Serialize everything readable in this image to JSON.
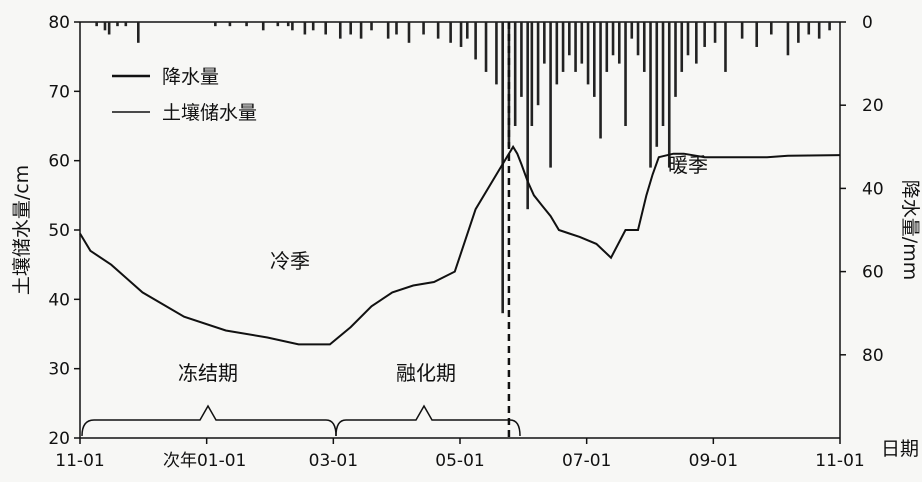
{
  "chart_data": {
    "type": "line",
    "title_fragment": "",
    "ylabel_left": "土壤储水量/cm",
    "ylabel_right": "降水量/mm",
    "xlabel": "日期",
    "ylim_left": [
      20,
      80
    ],
    "ylim_right": [
      0,
      100
    ],
    "left_ticks": [
      "20",
      "30",
      "40",
      "50",
      "60",
      "70",
      "80"
    ],
    "right_ticks": [
      "0",
      "20",
      "40",
      "60",
      "80"
    ],
    "x_ticks": [
      "11-01",
      "次年01-01",
      "03-01",
      "05-01",
      "07-01",
      "09-01",
      "11-01"
    ],
    "legend": [
      {
        "label": "降水量"
      },
      {
        "label": "土壤储水量"
      }
    ],
    "annotations": {
      "cold_season": "冷季",
      "warm_season": "暖季",
      "freeze_period": "冻结期",
      "thaw_period": "融化期"
    },
    "soil_storage": {
      "name": "土壤储水量",
      "unit": "cm",
      "x_days": [
        0,
        5,
        15,
        30,
        50,
        70,
        90,
        105,
        120,
        130,
        140,
        150,
        160,
        170,
        180,
        190,
        200,
        208,
        210,
        212,
        215,
        218,
        222,
        226,
        230,
        235,
        240,
        248,
        255,
        262,
        268,
        272,
        275,
        278,
        285,
        290,
        300,
        310,
        320,
        330,
        340,
        365
      ],
      "values": [
        49.5,
        47,
        45,
        41,
        37.5,
        35.5,
        34.5,
        33.5,
        33.5,
        36,
        39,
        41,
        42,
        42.5,
        44,
        53,
        58,
        62,
        61,
        59.5,
        57,
        55,
        53.5,
        52,
        50,
        49.5,
        49,
        48,
        46,
        50,
        50,
        55,
        58,
        60.5,
        61,
        61,
        60.5,
        60.5,
        60.5,
        60.5,
        60.7,
        60.8
      ]
    },
    "precipitation": {
      "name": "降水量",
      "unit": "mm",
      "x_days": [
        8,
        12,
        14,
        18,
        22,
        28,
        65,
        72,
        80,
        88,
        95,
        100,
        102,
        108,
        112,
        118,
        125,
        130,
        135,
        140,
        148,
        152,
        158,
        165,
        172,
        178,
        183,
        186,
        190,
        195,
        200,
        203,
        206,
        209,
        212,
        215,
        217,
        220,
        223,
        226,
        229,
        232,
        235,
        238,
        241,
        244,
        247,
        250,
        253,
        256,
        259,
        262,
        265,
        268,
        271,
        274,
        277,
        280,
        283,
        286,
        289,
        292,
        296,
        300,
        305,
        310,
        318,
        325,
        332,
        340,
        345,
        350,
        355,
        360
      ],
      "values": [
        1,
        2,
        3,
        1,
        1,
        5,
        1,
        1,
        1,
        2,
        1,
        1,
        2,
        3,
        2,
        3,
        4,
        3,
        4,
        2,
        4,
        3,
        5,
        3,
        4,
        5,
        6,
        4,
        9,
        12,
        15,
        70,
        30,
        25,
        18,
        45,
        25,
        20,
        10,
        35,
        15,
        12,
        8,
        12,
        10,
        15,
        18,
        28,
        12,
        8,
        10,
        25,
        4,
        8,
        12,
        35,
        30,
        25,
        35,
        18,
        12,
        8,
        10,
        6,
        5,
        12,
        4,
        6,
        3,
        8,
        5,
        3,
        4,
        2
      ]
    },
    "divider_day": 206
  }
}
